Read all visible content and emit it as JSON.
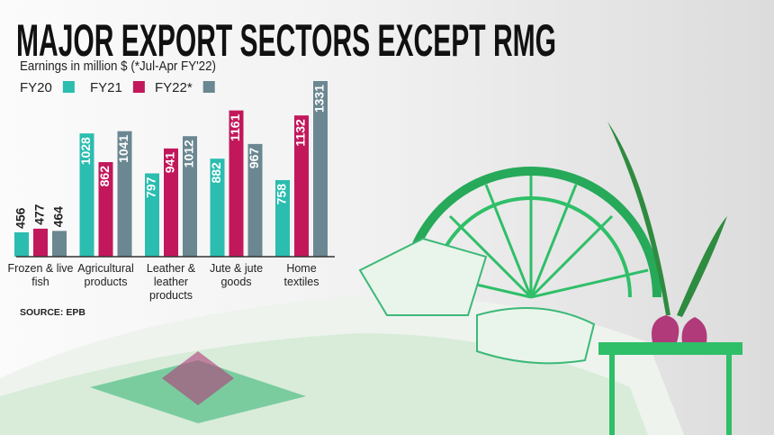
{
  "chart_data": {
    "type": "bar",
    "title": "MAJOR EXPORT SECTORS EXCEPT RMG",
    "subtitle": "Earnings in million $ (*Jul-Apr FY'22)",
    "source": "SOURCE: EPB",
    "categories": [
      "Frozen & live fish",
      "Agricultural products",
      "Leather & leather products",
      "Jute & jute goods",
      "Home textiles"
    ],
    "series": [
      {
        "name": "FY20",
        "color": "#2bbdb0",
        "values": [
          456,
          1028,
          797,
          882,
          758
        ]
      },
      {
        "name": "FY21",
        "color": "#c2185b",
        "values": [
          477,
          862,
          941,
          1161,
          1132
        ]
      },
      {
        "name": "FY22*",
        "color": "#6b8791",
        "values": [
          464,
          1041,
          1012,
          967,
          1331
        ]
      }
    ],
    "ylim": [
      315,
      1331
    ]
  }
}
